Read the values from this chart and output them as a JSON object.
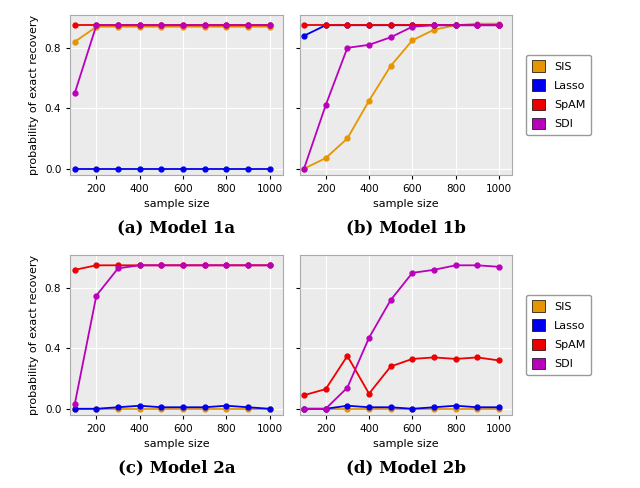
{
  "x": [
    100,
    200,
    300,
    400,
    500,
    600,
    700,
    800,
    900,
    1000
  ],
  "colors": {
    "SIS": "#E69500",
    "Lasso": "#0000EE",
    "SpAM": "#EE0000",
    "SDI": "#BB00BB"
  },
  "model1a": {
    "SIS": [
      0.84,
      0.94,
      0.94,
      0.94,
      0.94,
      0.94,
      0.94,
      0.94,
      0.94,
      0.94
    ],
    "Lasso": [
      0.0,
      0.0,
      0.0,
      0.0,
      0.0,
      0.0,
      0.0,
      0.0,
      0.0,
      0.0
    ],
    "SpAM": [
      0.95,
      0.95,
      0.95,
      0.95,
      0.95,
      0.95,
      0.95,
      0.95,
      0.95,
      0.95
    ],
    "SDI": [
      0.5,
      0.95,
      0.95,
      0.95,
      0.95,
      0.95,
      0.95,
      0.95,
      0.95,
      0.95
    ]
  },
  "model1b": {
    "SIS": [
      0.0,
      0.07,
      0.2,
      0.45,
      0.68,
      0.85,
      0.92,
      0.95,
      0.96,
      0.96
    ],
    "Lasso": [
      0.88,
      0.95,
      0.95,
      0.95,
      0.95,
      0.95,
      0.95,
      0.95,
      0.95,
      0.95
    ],
    "SpAM": [
      0.95,
      0.95,
      0.95,
      0.95,
      0.95,
      0.95,
      0.95,
      0.95,
      0.95,
      0.95
    ],
    "SDI": [
      0.0,
      0.42,
      0.8,
      0.82,
      0.87,
      0.94,
      0.95,
      0.95,
      0.95,
      0.95
    ]
  },
  "model2a": {
    "SIS": [
      0.0,
      0.0,
      0.0,
      0.0,
      0.0,
      0.0,
      0.0,
      0.0,
      0.0,
      0.0
    ],
    "Lasso": [
      0.0,
      0.0,
      0.01,
      0.02,
      0.01,
      0.01,
      0.01,
      0.02,
      0.01,
      0.0
    ],
    "SpAM": [
      0.92,
      0.95,
      0.95,
      0.95,
      0.95,
      0.95,
      0.95,
      0.95,
      0.95,
      0.95
    ],
    "SDI": [
      0.03,
      0.75,
      0.93,
      0.95,
      0.95,
      0.95,
      0.95,
      0.95,
      0.95,
      0.95
    ]
  },
  "model2b": {
    "SIS": [
      0.0,
      0.0,
      0.0,
      0.0,
      0.0,
      0.0,
      0.0,
      0.0,
      0.0,
      0.0
    ],
    "Lasso": [
      0.0,
      0.0,
      0.02,
      0.01,
      0.01,
      0.0,
      0.01,
      0.02,
      0.01,
      0.01
    ],
    "SpAM": [
      0.09,
      0.13,
      0.35,
      0.1,
      0.28,
      0.33,
      0.34,
      0.33,
      0.34,
      0.32
    ],
    "SDI": [
      0.0,
      0.0,
      0.14,
      0.47,
      0.72,
      0.9,
      0.92,
      0.95,
      0.95,
      0.94
    ]
  },
  "subtitles": [
    "(a) Model 1a",
    "(b) Model 1b",
    "(c) Model 2a",
    "(d) Model 2b"
  ],
  "ylabel": "probability of exact recovery",
  "xlabel": "sample size",
  "legend_labels": [
    "SIS",
    "Lasso",
    "SpAM",
    "SDI"
  ],
  "ylim": [
    -0.04,
    1.02
  ],
  "xlim": [
    80,
    1060
  ],
  "xticks": [
    200,
    400,
    600,
    800,
    1000
  ],
  "yticks": [
    0.0,
    0.4,
    0.8
  ],
  "marker": "o",
  "marker_size": 3.5,
  "linewidth": 1.3,
  "ax_bg_color": "#EBEBEB",
  "grid_color": "#FFFFFF",
  "title_fontsize": 12,
  "label_fontsize": 8,
  "tick_fontsize": 7.5,
  "legend_fontsize": 8
}
